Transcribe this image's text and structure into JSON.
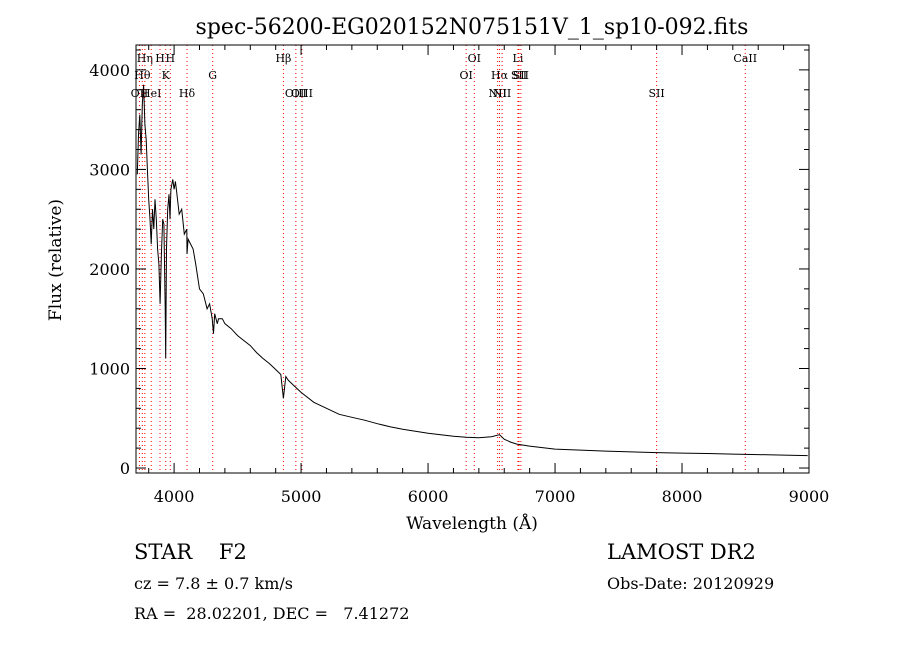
{
  "chart_data": {
    "type": "line",
    "title": "spec-56200-EG020152N075151V_1_sp10-092.fits",
    "xlabel": "Wavelength (Å)",
    "ylabel": "Flux (relative)",
    "xlim": [
      3700,
      9000
    ],
    "ylim": [
      -50,
      4250
    ],
    "xticks": [
      "4000",
      "5000",
      "6000",
      "7000",
      "8000",
      "9000"
    ],
    "yticks": [
      "0",
      "1000",
      "2000",
      "3000",
      "4000"
    ],
    "grid": false,
    "line_color": "#000000",
    "marker_color": "#ff0000",
    "lines": [
      {
        "label": "OII",
        "wave": 3727,
        "row": 3
      },
      {
        "label": "Hθ",
        "wave": 3750,
        "row": 2
      },
      {
        "label": "Hη",
        "wave": 3770,
        "row": 1
      },
      {
        "label": "HeI",
        "wave": 3820,
        "row": 3
      },
      {
        "label": "H",
        "wave": 3889,
        "row": 1
      },
      {
        "label": "K",
        "wave": 3934,
        "row": 2
      },
      {
        "label": "H",
        "wave": 3970,
        "row": 1
      },
      {
        "label": "Hδ",
        "wave": 4102,
        "row": 3
      },
      {
        "label": "G",
        "wave": 4304,
        "row": 2
      },
      {
        "label": "Hβ",
        "wave": 4861,
        "row": 1
      },
      {
        "label": "OIII",
        "wave": 4959,
        "row": 3
      },
      {
        "label": "OIII",
        "wave": 5007,
        "row": 3
      },
      {
        "label": "OI",
        "wave": 6300,
        "row": 2
      },
      {
        "label": "OI",
        "wave": 6364,
        "row": 1
      },
      {
        "label": "NII",
        "wave": 6548,
        "row": 3
      },
      {
        "label": "Hα",
        "wave": 6563,
        "row": 2
      },
      {
        "label": "NII",
        "wave": 6583,
        "row": 3
      },
      {
        "label": "Li",
        "wave": 6708,
        "row": 1
      },
      {
        "label": "SII",
        "wave": 6716,
        "row": 2
      },
      {
        "label": "SII",
        "wave": 6731,
        "row": 2
      },
      {
        "label": "SII",
        "wave": 7800,
        "row": 3
      },
      {
        "label": "CaII",
        "wave": 8498,
        "row": 1
      }
    ],
    "series": [
      {
        "x": [
          3710,
          3720,
          3730,
          3740,
          3750,
          3760,
          3770,
          3780,
          3790,
          3800,
          3810,
          3820,
          3830,
          3840,
          3850,
          3860,
          3870,
          3880,
          3890,
          3900,
          3910,
          3920,
          3930,
          3934,
          3940,
          3950,
          3960,
          3968,
          3975,
          3990,
          4000,
          4010,
          4020,
          4040,
          4060,
          4080,
          4100,
          4102,
          4110,
          4130,
          4150,
          4170,
          4200,
          4230,
          4260,
          4280,
          4300,
          4310,
          4320,
          4340,
          4350,
          4380,
          4400,
          4450,
          4500,
          4550,
          4600,
          4650,
          4700,
          4750,
          4800,
          4840,
          4861,
          4880,
          4900,
          4950,
          5000,
          5100,
          5200,
          5300,
          5400,
          5500,
          5600,
          5700,
          5800,
          5900,
          6000,
          6100,
          6200,
          6300,
          6400,
          6500,
          6563,
          6600,
          6650,
          6700,
          6800,
          6900,
          7000,
          7200,
          7400,
          7600,
          7800,
          8000,
          8200,
          8400,
          8600,
          8800,
          8990
        ],
        "y": [
          2950,
          3350,
          3550,
          3150,
          3650,
          3850,
          3450,
          3300,
          3000,
          2700,
          2500,
          2250,
          2600,
          2400,
          2700,
          2500,
          2200,
          2050,
          1650,
          2150,
          2500,
          2450,
          1600,
          1100,
          2200,
          2600,
          2750,
          2500,
          2800,
          2900,
          2800,
          2880,
          2780,
          2550,
          2600,
          2350,
          2400,
          2150,
          2300,
          2250,
          2200,
          2050,
          1800,
          1750,
          1600,
          1650,
          1500,
          1350,
          1550,
          1450,
          1500,
          1500,
          1450,
          1400,
          1330,
          1280,
          1230,
          1160,
          1100,
          1050,
          990,
          940,
          700,
          920,
          880,
          820,
          760,
          660,
          600,
          540,
          510,
          480,
          445,
          415,
          390,
          370,
          350,
          335,
          320,
          310,
          305,
          315,
          335,
          290,
          260,
          240,
          220,
          205,
          190,
          180,
          170,
          162,
          155,
          150,
          146,
          140,
          135,
          130,
          125
        ]
      }
    ]
  },
  "info": {
    "object_line": "STAR    F2",
    "cz_line": "cz = 7.8 ± 0.7 km/s",
    "coords_line": "RA =  28.02201, DEC =   7.41272",
    "survey": "LAMOST DR2",
    "obs_date": "Obs-Date: 20120929"
  }
}
